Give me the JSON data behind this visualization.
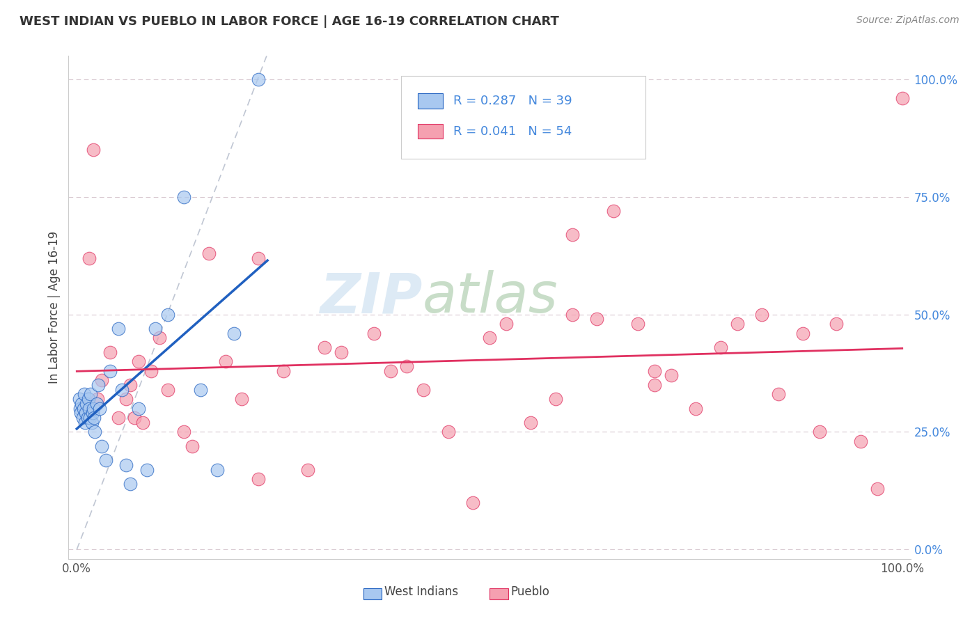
{
  "title": "WEST INDIAN VS PUEBLO IN LABOR FORCE | AGE 16-19 CORRELATION CHART",
  "source": "Source: ZipAtlas.com",
  "ylabel": "In Labor Force | Age 16-19",
  "xlim": [
    -0.01,
    1.01
  ],
  "ylim": [
    -0.02,
    1.05
  ],
  "legend_r1": "R = 0.287",
  "legend_n1": "N = 39",
  "legend_r2": "R = 0.041",
  "legend_n2": "N = 54",
  "color_west_indians": "#a8c8f0",
  "color_pueblo": "#f5a0b0",
  "color_trend_west": "#2060c0",
  "color_trend_pueblo": "#e03060",
  "background_color": "#ffffff",
  "grid_color": "#d8c8d0",
  "watermark_zip": "ZIP",
  "watermark_atlas": "atlas",
  "west_indians_x": [
    0.003,
    0.004,
    0.005,
    0.006,
    0.007,
    0.008,
    0.009,
    0.01,
    0.011,
    0.012,
    0.013,
    0.014,
    0.015,
    0.016,
    0.017,
    0.018,
    0.019,
    0.02,
    0.021,
    0.022,
    0.024,
    0.026,
    0.028,
    0.03,
    0.035,
    0.04,
    0.05,
    0.055,
    0.06,
    0.065,
    0.075,
    0.085,
    0.095,
    0.11,
    0.13,
    0.15,
    0.17,
    0.19,
    0.22
  ],
  "west_indians_y": [
    0.32,
    0.3,
    0.29,
    0.31,
    0.28,
    0.3,
    0.33,
    0.27,
    0.29,
    0.31,
    0.28,
    0.32,
    0.3,
    0.28,
    0.33,
    0.27,
    0.29,
    0.3,
    0.28,
    0.25,
    0.31,
    0.35,
    0.3,
    0.22,
    0.19,
    0.38,
    0.47,
    0.34,
    0.18,
    0.14,
    0.3,
    0.17,
    0.47,
    0.5,
    0.75,
    0.34,
    0.17,
    0.46,
    1.0
  ],
  "pueblo_x": [
    0.015,
    0.02,
    0.025,
    0.03,
    0.04,
    0.05,
    0.06,
    0.065,
    0.07,
    0.075,
    0.08,
    0.09,
    0.1,
    0.11,
    0.13,
    0.14,
    0.16,
    0.18,
    0.2,
    0.22,
    0.25,
    0.28,
    0.32,
    0.36,
    0.4,
    0.42,
    0.45,
    0.48,
    0.5,
    0.52,
    0.55,
    0.58,
    0.6,
    0.63,
    0.65,
    0.68,
    0.7,
    0.72,
    0.75,
    0.78,
    0.8,
    0.83,
    0.85,
    0.88,
    0.9,
    0.92,
    0.95,
    0.97,
    0.22,
    0.3,
    0.38,
    0.6,
    0.7,
    1.0
  ],
  "pueblo_y": [
    0.62,
    0.85,
    0.32,
    0.36,
    0.42,
    0.28,
    0.32,
    0.35,
    0.28,
    0.4,
    0.27,
    0.38,
    0.45,
    0.34,
    0.25,
    0.22,
    0.63,
    0.4,
    0.32,
    0.15,
    0.38,
    0.17,
    0.42,
    0.46,
    0.39,
    0.34,
    0.25,
    0.1,
    0.45,
    0.48,
    0.27,
    0.32,
    0.5,
    0.49,
    0.72,
    0.48,
    0.35,
    0.37,
    0.3,
    0.43,
    0.48,
    0.5,
    0.33,
    0.46,
    0.25,
    0.48,
    0.23,
    0.13,
    0.62,
    0.43,
    0.38,
    0.67,
    0.38,
    0.96
  ],
  "figsize": [
    14.06,
    8.92
  ],
  "dpi": 100
}
